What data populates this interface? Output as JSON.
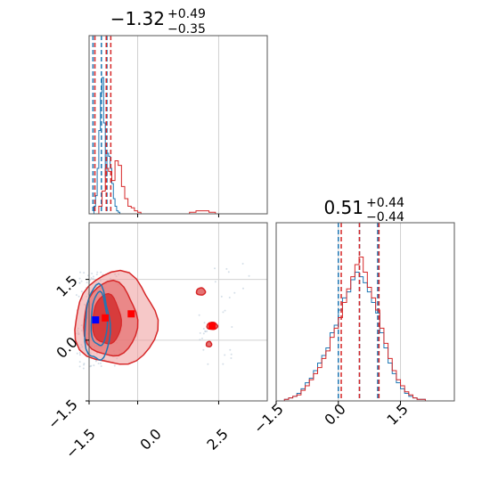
{
  "colors": {
    "blue": "#1f77b4",
    "red": "#d62728",
    "red_fill": "#ef9a9a",
    "grid": "#d0d0d0"
  },
  "chart_data": [
    {
      "type": "histogram",
      "panel": "top-left",
      "title_main": "−1.32",
      "title_sup": "+0.49",
      "title_sub": "−0.35",
      "xlim": [
        -1.5,
        4.0
      ],
      "series": [
        {
          "color": "blue",
          "bin_edges": [
            -1.35,
            -1.3,
            -1.25,
            -1.2,
            -1.15,
            -1.1,
            -1.05,
            -1.0,
            -0.95,
            -0.9,
            -0.85,
            -0.8,
            -0.75,
            -0.7,
            -0.65,
            -0.6,
            -0.55
          ],
          "heights": [
            0.05,
            0.12,
            0.3,
            0.55,
            0.8,
            0.9,
            0.6,
            0.25,
            0.4,
            0.38,
            0.3,
            0.2,
            0.1,
            0.05,
            0.02,
            0.01
          ],
          "quantiles": [
            -1.38,
            -1.12,
            -0.95
          ]
        },
        {
          "color": "red",
          "bin_edges": [
            -1.2,
            -1.1,
            -1.0,
            -0.9,
            -0.8,
            -0.7,
            -0.6,
            -0.5,
            -0.4,
            -0.3,
            -0.2,
            -0.1,
            0.0,
            0.1,
            0.2,
            1.6,
            1.8,
            2.0,
            2.2,
            2.4
          ],
          "heights": [
            0.05,
            0.15,
            0.3,
            0.28,
            0.22,
            0.35,
            0.32,
            0.18,
            0.1,
            0.05,
            0.04,
            0.02,
            0.01,
            0.0,
            0.0,
            0.01,
            0.02,
            0.02,
            0.01
          ],
          "quantiles": [
            -1.32,
            -0.83,
            -0.97
          ]
        }
      ]
    },
    {
      "type": "contour",
      "panel": "bottom-left",
      "xlim": [
        -1.5,
        4.0
      ],
      "ylim": [
        -1.5,
        2.9
      ],
      "xticks": [
        "−1.5",
        "0.0",
        "2.5"
      ],
      "yticks": [
        "−1.5",
        "0.0",
        "1.5"
      ],
      "markers": [
        {
          "color": "blue",
          "x": -1.3,
          "y": 0.5
        },
        {
          "color": "red",
          "x": -1.0,
          "y": 0.55
        },
        {
          "color": "red",
          "x": -0.2,
          "y": 0.65
        },
        {
          "color": "red",
          "x": 2.3,
          "y": 0.35
        }
      ]
    },
    {
      "type": "histogram",
      "panel": "bottom-right",
      "title_main": "0.51",
      "title_sup": "+0.44",
      "title_sub": "−0.44",
      "xlim": [
        -1.5,
        2.8
      ],
      "xticks": [
        "−1.5",
        "0.0",
        "1.5"
      ],
      "series": [
        {
          "color": "blue",
          "bin_edges": [
            -1.3,
            -1.2,
            -1.1,
            -1.0,
            -0.9,
            -0.8,
            -0.7,
            -0.6,
            -0.5,
            -0.4,
            -0.3,
            -0.2,
            -0.1,
            0.0,
            0.1,
            0.2,
            0.3,
            0.4,
            0.5,
            0.6,
            0.7,
            0.8,
            0.9,
            1.0,
            1.1,
            1.2,
            1.3,
            1.4,
            1.5,
            1.6,
            1.7,
            1.8,
            1.9,
            2.0,
            2.1
          ],
          "heights": [
            0.01,
            0.02,
            0.03,
            0.05,
            0.08,
            0.12,
            0.15,
            0.2,
            0.25,
            0.3,
            0.35,
            0.45,
            0.5,
            0.6,
            0.68,
            0.72,
            0.8,
            0.85,
            0.82,
            0.78,
            0.72,
            0.65,
            0.58,
            0.45,
            0.35,
            0.25,
            0.18,
            0.12,
            0.08,
            0.05,
            0.03,
            0.02,
            0.01,
            0.01
          ],
          "quantiles": [
            0.0,
            0.51,
            0.95
          ]
        },
        {
          "color": "red",
          "bin_edges": [
            -1.3,
            -1.2,
            -1.1,
            -1.0,
            -0.9,
            -0.8,
            -0.7,
            -0.6,
            -0.5,
            -0.4,
            -0.3,
            -0.2,
            -0.1,
            0.0,
            0.1,
            0.2,
            0.3,
            0.4,
            0.5,
            0.6,
            0.7,
            0.8,
            0.9,
            1.0,
            1.1,
            1.2,
            1.3,
            1.4,
            1.5,
            1.6,
            1.7,
            1.8,
            1.9,
            2.0,
            2.1
          ],
          "heights": [
            0.01,
            0.02,
            0.03,
            0.04,
            0.07,
            0.1,
            0.14,
            0.18,
            0.22,
            0.28,
            0.33,
            0.42,
            0.48,
            0.55,
            0.65,
            0.74,
            0.82,
            0.9,
            0.95,
            0.85,
            0.75,
            0.68,
            0.6,
            0.48,
            0.38,
            0.28,
            0.2,
            0.14,
            0.1,
            0.06,
            0.04,
            0.02,
            0.01,
            0.01
          ],
          "quantiles": [
            0.07,
            0.51,
            0.98
          ]
        }
      ]
    }
  ]
}
